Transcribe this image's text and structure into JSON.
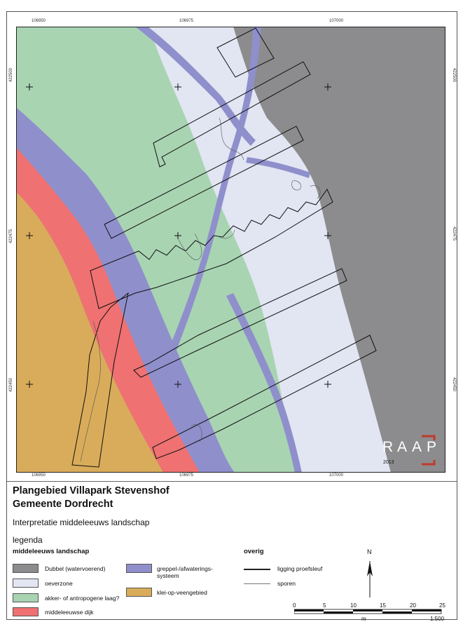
{
  "map": {
    "coords_top": [
      "106950",
      "106975",
      "107000"
    ],
    "coords_bottom": [
      "106950",
      "106975",
      "107000"
    ],
    "coords_left": [
      "422500",
      "422475",
      "422450"
    ],
    "coords_right": [
      "422500",
      "422475",
      "422450"
    ],
    "colors": {
      "dubbel": "#8c8c8e",
      "oeverzone": "#e2e5f2",
      "akker": "#a8d4b2",
      "dijk": "#ef7171",
      "greppel": "#8f8fcc",
      "klei": "#d8ac5a"
    }
  },
  "logo": {
    "letters": [
      "R",
      "A",
      "A",
      "P"
    ],
    "year": "2013"
  },
  "title": {
    "line1": "Plangebied Villapark Stevenshof",
    "line2": "Gemeente Dordrecht",
    "subtitle": "Interpretatie middeleeuws landschap"
  },
  "legend": {
    "heading": "legenda",
    "section_landscape": "middeleeuws landschap",
    "section_other": "overig",
    "items": [
      {
        "label": "Dubbel (watervoerend)",
        "color": "#8c8c8e"
      },
      {
        "label": "oeverzone",
        "color": "#e2e5f2"
      },
      {
        "label": "akker- of antropogene laag?",
        "color": "#a8d4b2"
      },
      {
        "label": "middeleeuwse dijk",
        "color": "#ef7171"
      },
      {
        "label": "greppel-/afwaterings-\nsysteem",
        "color": "#8f8fcc"
      },
      {
        "label": "klei-op-veengebied",
        "color": "#d8ac5a"
      }
    ],
    "other_items": [
      "ligging proefsleuf",
      "sporen"
    ]
  },
  "scalebar": {
    "north": "N",
    "ticks": [
      "0",
      "5",
      "10",
      "15",
      "20",
      "25"
    ],
    "unit": "m",
    "ratio": "1:500"
  }
}
